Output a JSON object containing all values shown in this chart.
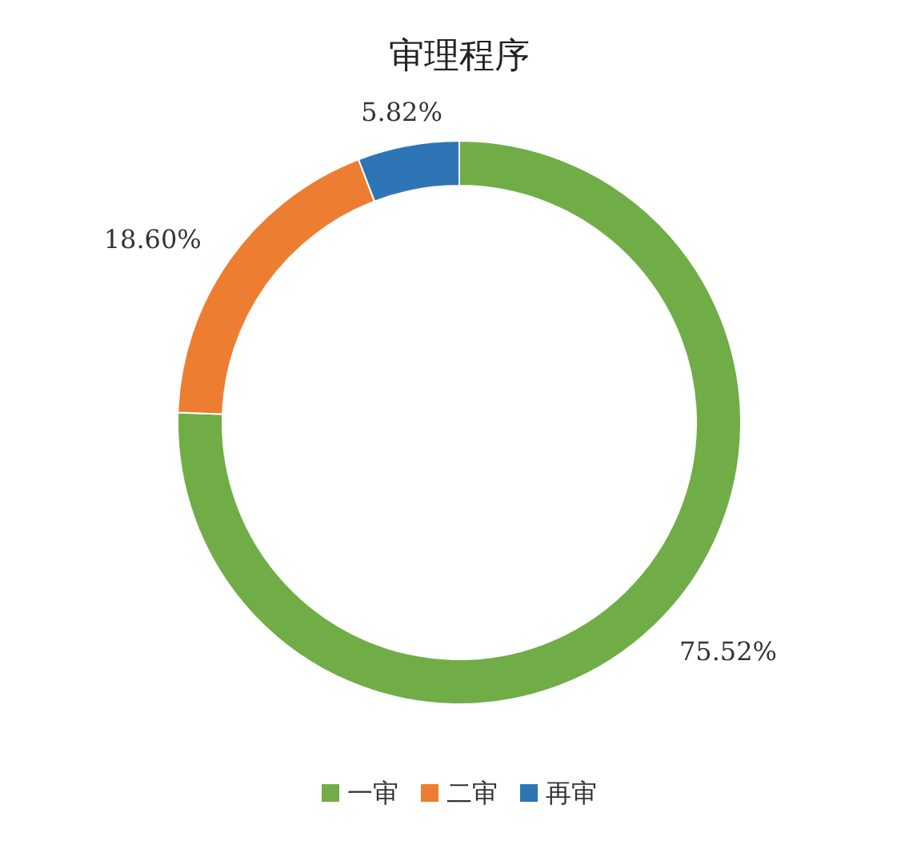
{
  "chart_data": {
    "type": "donut",
    "title": "审理程序",
    "categories": [
      "一审",
      "二审",
      "再审"
    ],
    "values": [
      75.52,
      18.6,
      5.82
    ],
    "colors": [
      "#70ad47",
      "#ed7d31",
      "#2e75b6"
    ],
    "value_labels": [
      "75.52%",
      "18.60%",
      "5.82%"
    ],
    "legend": "bottom"
  }
}
